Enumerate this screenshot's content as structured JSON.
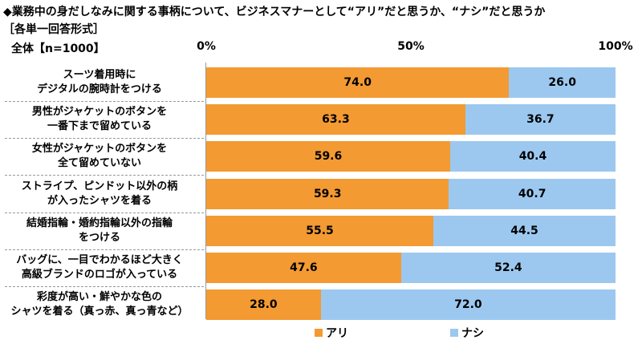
{
  "title": "◆業務中の身だしなみに関する事柄について、ビジネスマナーとして“アリ”だと思うか、“ナシ”だと思うか",
  "subtitle": "［各単一回答形式］",
  "base_label": "全体【n=1000】",
  "chart_data": {
    "type": "bar",
    "orientation": "horizontal-stacked-100",
    "categories": [
      [
        "スーツ着用時に",
        "デジタルの腕時計をつける"
      ],
      [
        "男性がジャケットのボタンを",
        "一番下まで留めている"
      ],
      [
        "女性がジャケットのボタンを",
        "全て留めていない"
      ],
      [
        "ストライプ、ピンドット以外の柄",
        "が入ったシャツを着る"
      ],
      [
        "結婚指輪・婚約指輪以外の指輪",
        "をつける"
      ],
      [
        "バッグに、一目でわかるほど大きく",
        "高級ブランドのロゴが入っている"
      ],
      [
        "彩度が高い・鮮やかな色の",
        "シャツを着る（真っ赤、真っ青など）"
      ]
    ],
    "series": [
      {
        "name": "アリ",
        "color": "#F39A33",
        "values": [
          74.0,
          63.3,
          59.6,
          59.3,
          55.5,
          47.6,
          28.0
        ]
      },
      {
        "name": "ナシ",
        "color": "#9CC8F0",
        "values": [
          26.0,
          36.7,
          40.4,
          40.7,
          44.5,
          52.4,
          72.0
        ]
      }
    ],
    "x_ticks": [
      "0%",
      "50%",
      "100%"
    ],
    "xlim": [
      0,
      100
    ],
    "legend_position": "bottom"
  }
}
